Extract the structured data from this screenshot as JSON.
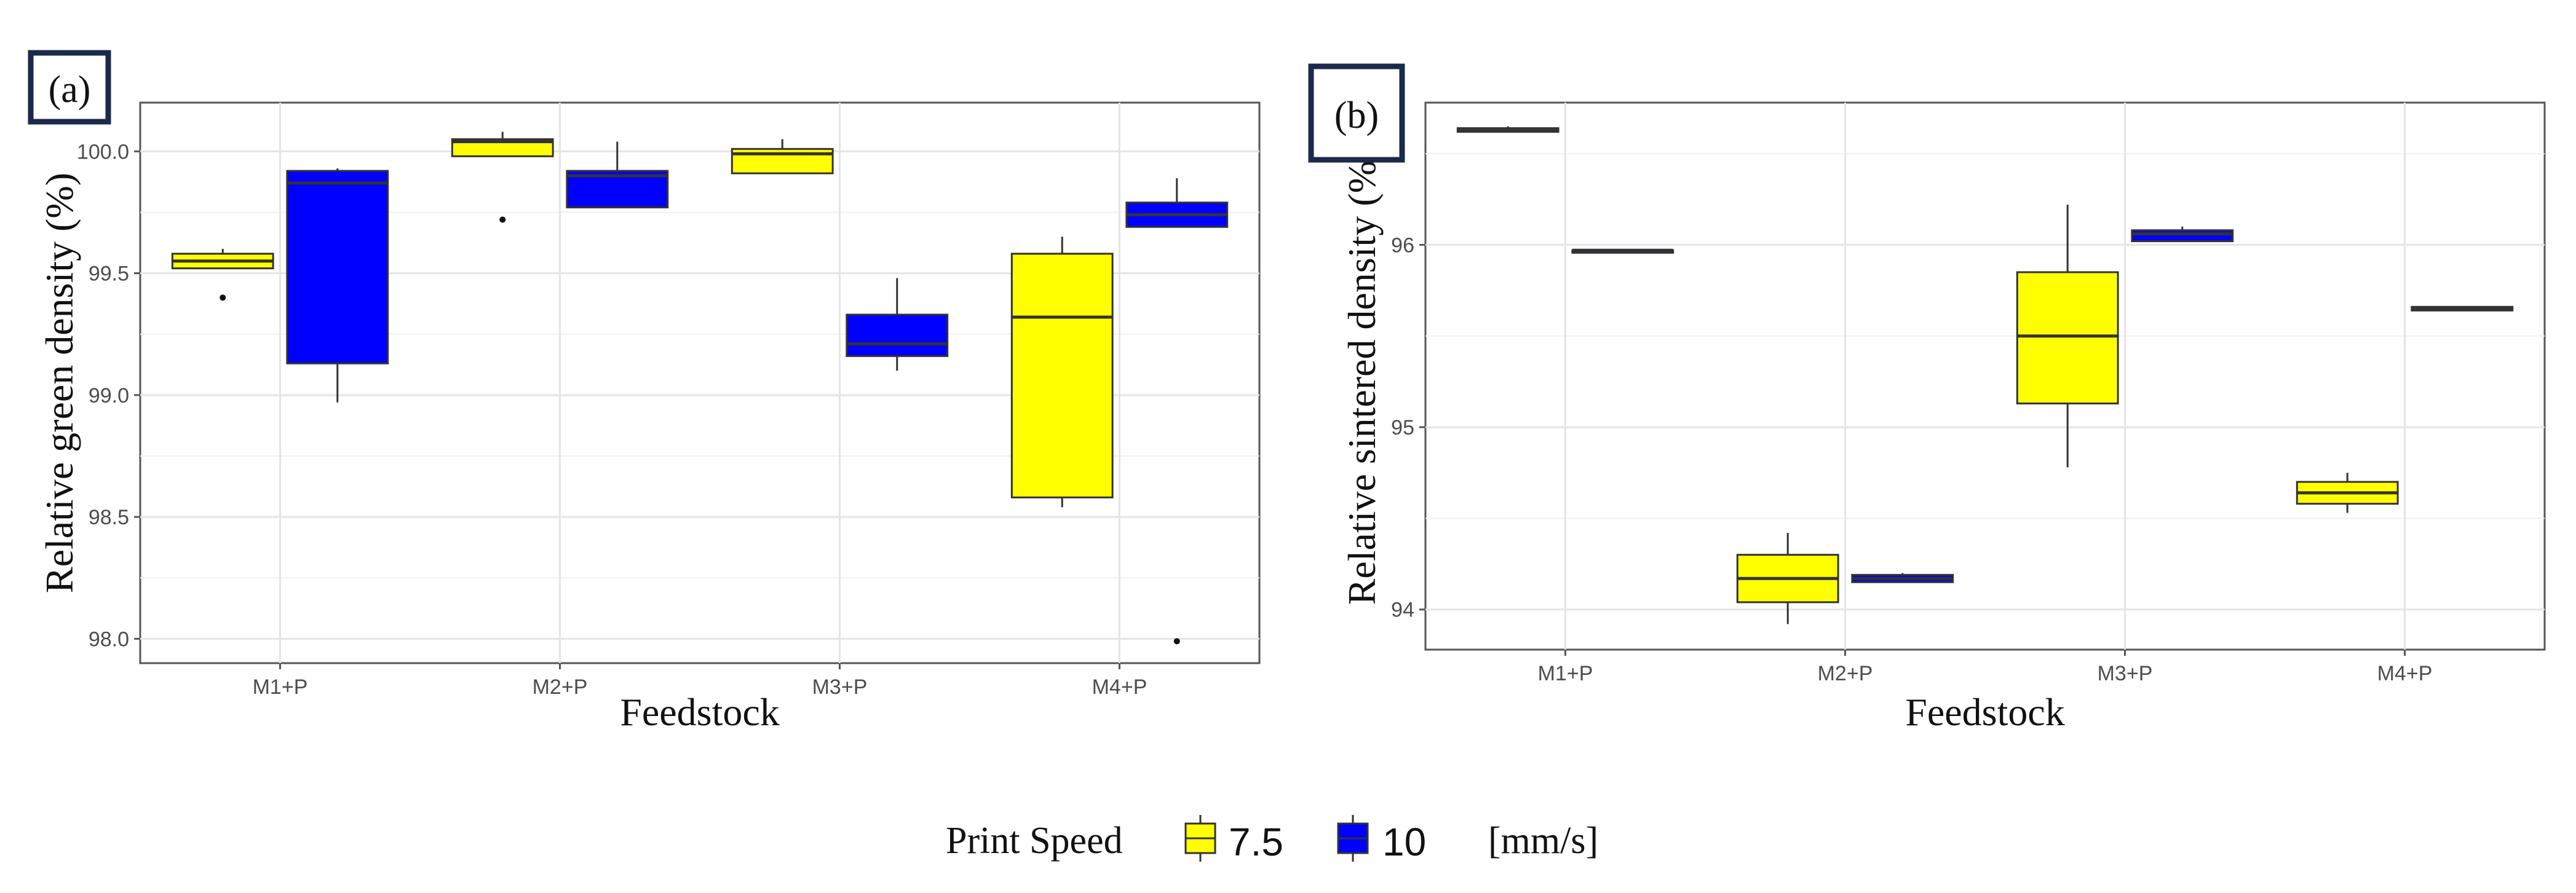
{
  "panels": [
    {
      "tag": "(a)"
    },
    {
      "tag": "(b)"
    }
  ],
  "legend": {
    "title": "Print Speed",
    "unit": "[mm/s]",
    "entries": [
      {
        "label": "7.5",
        "color": "#ffff00"
      },
      {
        "label": "10",
        "color": "#0000ff"
      }
    ]
  },
  "chart_data": [
    {
      "type": "box",
      "xlabel": "Feedstock",
      "ylabel": "Relative green density (%)",
      "categories": [
        "M1+P",
        "M2+P",
        "M3+P",
        "M4+P"
      ],
      "ylim": [
        97.9,
        100.2
      ],
      "yticks": [
        "98.0",
        "98.5",
        "99.0",
        "99.5",
        "100.0"
      ],
      "grid": true,
      "series": [
        {
          "name": "7.5",
          "color": "#ffff00",
          "boxes": [
            {
              "min": 99.52,
              "q1": 99.52,
              "median": 99.55,
              "q3": 99.58,
              "max": 99.6,
              "outliers": [
                99.4
              ]
            },
            {
              "min": 99.98,
              "q1": 99.98,
              "median": 100.04,
              "q3": 100.05,
              "max": 100.08,
              "outliers": [
                99.72
              ]
            },
            {
              "min": 99.91,
              "q1": 99.91,
              "median": 99.99,
              "q3": 100.01,
              "max": 100.05,
              "outliers": []
            },
            {
              "min": 98.54,
              "q1": 98.58,
              "median": 99.32,
              "q3": 99.58,
              "max": 99.65,
              "outliers": []
            }
          ]
        },
        {
          "name": "10",
          "color": "#0000ff",
          "boxes": [
            {
              "min": 98.97,
              "q1": 99.13,
              "median": 99.87,
              "q3": 99.92,
              "max": 99.93,
              "outliers": []
            },
            {
              "min": 99.77,
              "q1": 99.77,
              "median": 99.9,
              "q3": 99.92,
              "max": 100.04,
              "outliers": []
            },
            {
              "min": 99.1,
              "q1": 99.16,
              "median": 99.21,
              "q3": 99.33,
              "max": 99.48,
              "outliers": []
            },
            {
              "min": 99.69,
              "q1": 99.69,
              "median": 99.74,
              "q3": 99.79,
              "max": 99.89,
              "outliers": [
                97.99
              ]
            }
          ]
        }
      ]
    },
    {
      "type": "box",
      "xlabel": "Feedstock",
      "ylabel": "Relative sintered density (%)",
      "categories": [
        "M1+P",
        "M2+P",
        "M3+P",
        "M4+P"
      ],
      "ylim": [
        93.78,
        96.78
      ],
      "yticks": [
        "94",
        "95",
        "96"
      ],
      "grid": true,
      "series": [
        {
          "name": "7.5",
          "color": "#ffff00",
          "boxes": [
            {
              "min": 96.62,
              "q1": 96.62,
              "median": 96.63,
              "q3": 96.64,
              "max": 96.65,
              "outliers": []
            },
            {
              "min": 93.92,
              "q1": 94.04,
              "median": 94.17,
              "q3": 94.3,
              "max": 94.42,
              "outliers": []
            },
            {
              "min": 94.78,
              "q1": 95.13,
              "median": 95.5,
              "q3": 95.85,
              "max": 96.22,
              "outliers": []
            },
            {
              "min": 94.53,
              "q1": 94.58,
              "median": 94.64,
              "q3": 94.7,
              "max": 94.75,
              "outliers": []
            }
          ]
        },
        {
          "name": "10",
          "color": "#0000ff",
          "boxes": [
            {
              "min": 95.97,
              "q1": 95.97,
              "median": 95.97,
              "q3": 95.97,
              "max": 95.97,
              "outliers": []
            },
            {
              "min": 94.15,
              "q1": 94.15,
              "median": 94.17,
              "q3": 94.19,
              "max": 94.2,
              "outliers": []
            },
            {
              "min": 96.02,
              "q1": 96.02,
              "median": 96.06,
              "q3": 96.08,
              "max": 96.1,
              "outliers": []
            },
            {
              "min": 95.64,
              "q1": 95.64,
              "median": 95.65,
              "q3": 95.66,
              "max": 95.66,
              "outliers": []
            }
          ]
        }
      ]
    }
  ]
}
